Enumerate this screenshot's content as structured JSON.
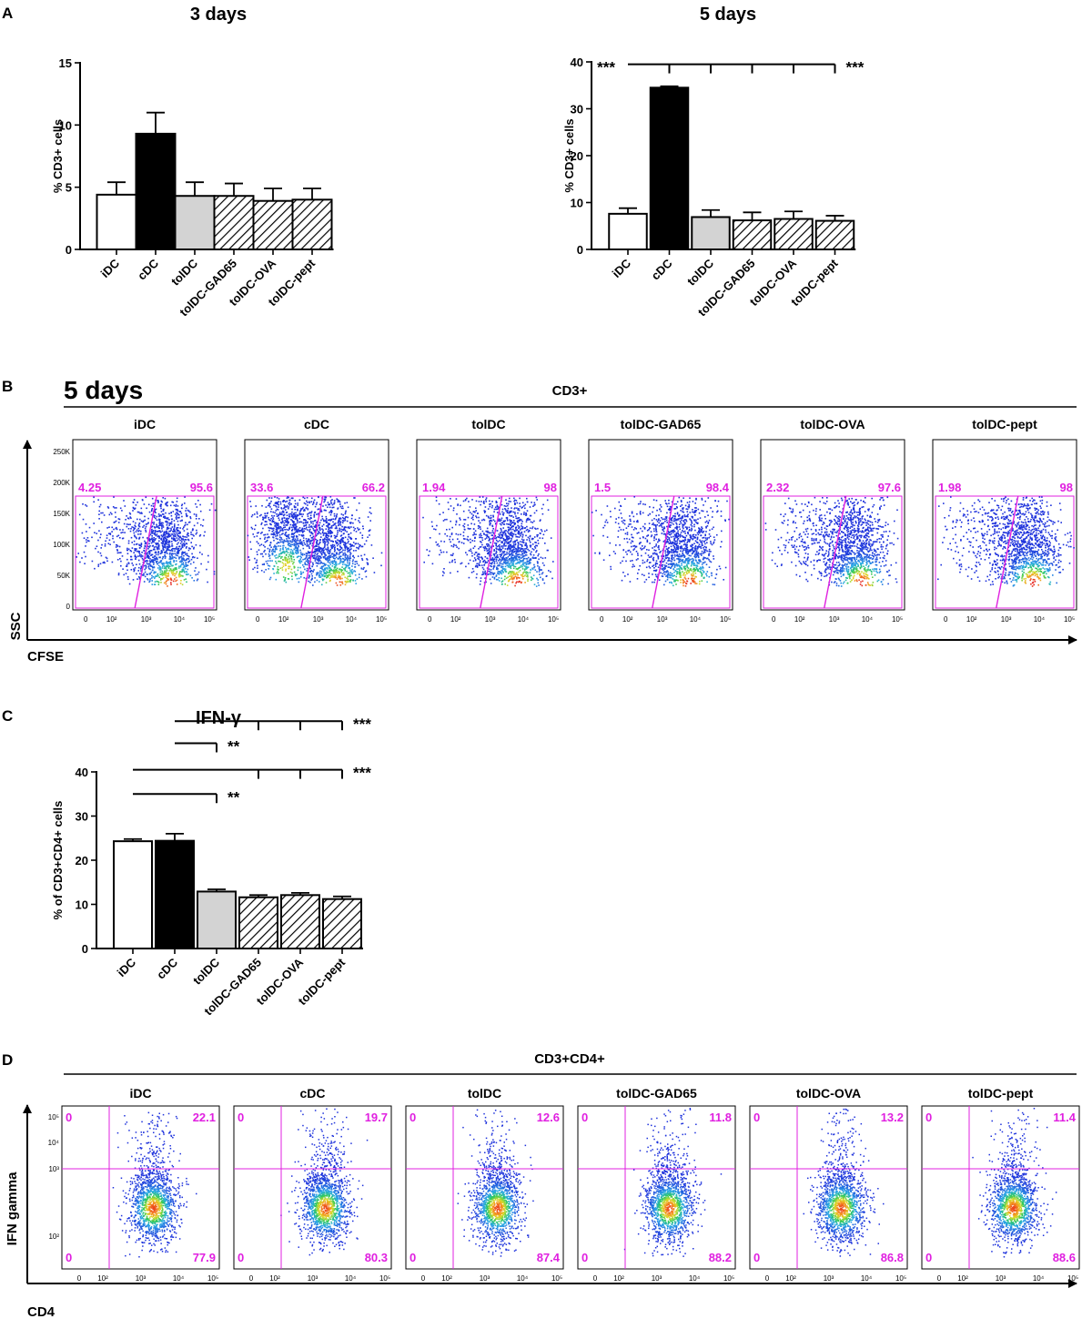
{
  "panels": {
    "A": "A",
    "B": "B",
    "C": "C",
    "D": "D"
  },
  "colors": {
    "magenta": "#e020e0",
    "axis": "#000000",
    "dot_blue": "#1a2fd6"
  },
  "chart_data": [
    {
      "id": "a3",
      "type": "bar",
      "title": "3 days",
      "ylabel": "% CD3+ cells",
      "ylim": [
        0,
        15
      ],
      "yticks": [
        0,
        5,
        10,
        15
      ],
      "categories": [
        "iDC",
        "cDC",
        "tolDC",
        "tolDC-GAD65",
        "tolDC-OVA",
        "tolDC-pept"
      ],
      "values": [
        4.4,
        9.3,
        4.3,
        4.3,
        3.9,
        4.0
      ],
      "errors": [
        1.0,
        1.7,
        1.1,
        1.0,
        1.0,
        0.9
      ],
      "fills": [
        "white",
        "black",
        "gray",
        "hatch",
        "hatch",
        "hatch"
      ],
      "significance": []
    },
    {
      "id": "a5",
      "type": "bar",
      "title": "5 days",
      "ylabel": "% CD3+ cells",
      "ylim": [
        0,
        40
      ],
      "yticks": [
        0,
        10,
        20,
        30,
        40
      ],
      "categories": [
        "iDC",
        "cDC",
        "tolDC",
        "tolDC-GAD65",
        "tolDC-OVA",
        "tolDC-pept"
      ],
      "values": [
        7.6,
        34.5,
        6.9,
        6.2,
        6.5,
        6.1
      ],
      "errors": [
        1.2,
        0.3,
        1.5,
        1.7,
        1.6,
        1.1
      ],
      "fills": [
        "white",
        "black",
        "gray",
        "hatch",
        "hatch",
        "hatch"
      ],
      "significance": [
        {
          "from": 0,
          "to": 1,
          "drops": [
            1
          ],
          "y": 39.5,
          "label": "***",
          "label_side": "left"
        },
        {
          "from": 1,
          "to": 5,
          "drops": [
            2,
            3,
            4,
            5
          ],
          "y": 39.5,
          "label": "***",
          "label_side": "right"
        }
      ]
    },
    {
      "id": "c",
      "type": "bar",
      "title": "IFN-γ",
      "ylabel": "% of CD3+CD4+ cells",
      "ylim": [
        0,
        40
      ],
      "yticks": [
        0,
        10,
        20,
        30,
        40
      ],
      "categories": [
        "iDC",
        "cDC",
        "tolDC",
        "tolDC-GAD65",
        "tolDC-OVA",
        "tolDC-pept"
      ],
      "values": [
        24.3,
        24.4,
        12.9,
        11.6,
        12.1,
        11.2
      ],
      "errors": [
        0.5,
        1.6,
        0.5,
        0.5,
        0.5,
        0.6
      ],
      "fills": [
        "white",
        "black",
        "gray",
        "hatch",
        "hatch",
        "hatch"
      ],
      "significance": [
        {
          "from": 1,
          "to": 5,
          "drops": [
            3,
            4,
            5
          ],
          "y": 51.5,
          "label": "***",
          "label_side": "right"
        },
        {
          "from": 1,
          "to": 2,
          "drops": [
            2
          ],
          "y": 46.5,
          "label": "**",
          "label_side": "right"
        },
        {
          "from": 0,
          "to": 5,
          "drops": [
            3,
            4,
            5
          ],
          "y": 40.5,
          "label": "***",
          "label_side": "right"
        },
        {
          "from": 0,
          "to": 2,
          "drops": [
            2
          ],
          "y": 35.0,
          "label": "**",
          "label_side": "right"
        }
      ]
    },
    {
      "id": "b",
      "type": "scatter",
      "days_title": "5 days",
      "population": "CD3+",
      "xlabel": "CFSE",
      "ylabel": "SSC",
      "x_ticks": [
        "0",
        "10²",
        "10³",
        "10⁴",
        "10⁵"
      ],
      "y_ticks": [
        "0",
        "50K",
        "100K",
        "150K",
        "200K",
        "250K"
      ],
      "plots": [
        {
          "name": "iDC",
          "left": "4.25",
          "right": "95.6"
        },
        {
          "name": "cDC",
          "left": "33.6",
          "right": "66.2"
        },
        {
          "name": "tolDC",
          "left": "1.94",
          "right": "98"
        },
        {
          "name": "tolDC-GAD65",
          "left": "1.5",
          "right": "98.4"
        },
        {
          "name": "tolDC-OVA",
          "left": "2.32",
          "right": "97.6"
        },
        {
          "name": "tolDC-pept",
          "left": "1.98",
          "right": "98"
        }
      ]
    },
    {
      "id": "d",
      "type": "scatter",
      "population": "CD3+CD4+",
      "xlabel": "CD4",
      "ylabel": "IFN gamma",
      "x_ticks": [
        "0",
        "10²",
        "10³",
        "10⁴",
        "10⁵"
      ],
      "y_ticks": [
        "10²",
        "10³",
        "10⁴",
        "10⁵"
      ],
      "plots": [
        {
          "name": "iDC",
          "ul": "0",
          "ur": "22.1",
          "ll": "0",
          "lr": "77.9"
        },
        {
          "name": "cDC",
          "ul": "0",
          "ur": "19.7",
          "ll": "0",
          "lr": "80.3"
        },
        {
          "name": "tolDC",
          "ul": "0",
          "ur": "12.6",
          "ll": "0",
          "lr": "87.4"
        },
        {
          "name": "tolDC-GAD65",
          "ul": "0",
          "ur": "11.8",
          "ll": "0",
          "lr": "88.2"
        },
        {
          "name": "tolDC-OVA",
          "ul": "0",
          "ur": "13.2",
          "ll": "0",
          "lr": "86.8"
        },
        {
          "name": "tolDC-pept",
          "ul": "0",
          "ur": "11.4",
          "ll": "0",
          "lr": "88.6"
        }
      ]
    }
  ]
}
